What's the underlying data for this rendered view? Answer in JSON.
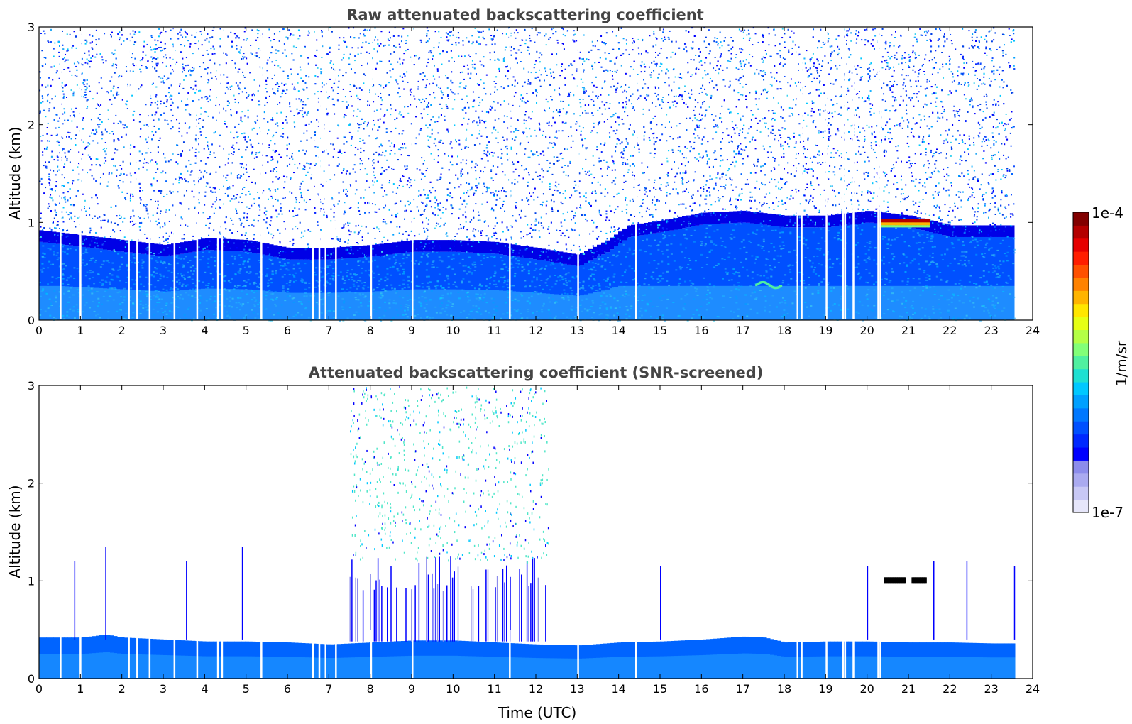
{
  "chart_data": [
    {
      "type": "heatmap",
      "title": "Raw attenuated backscattering coefficient",
      "xlabel": "",
      "ylabel": "Altitude (km)",
      "xlim": [
        0,
        24
      ],
      "ylim": [
        0,
        3
      ],
      "xticks": [
        "0",
        "1",
        "2",
        "3",
        "4",
        "5",
        "6",
        "7",
        "8",
        "9",
        "10",
        "11",
        "12",
        "13",
        "14",
        "15",
        "16",
        "17",
        "18",
        "19",
        "20",
        "21",
        "22",
        "23",
        "24"
      ],
      "yticks": [
        "0",
        "1",
        "2",
        "3"
      ],
      "data_end_time": 23.55,
      "mixing_layer_top_km": [
        [
          0,
          0.8
        ],
        [
          1,
          0.75
        ],
        [
          2,
          0.7
        ],
        [
          3,
          0.65
        ],
        [
          4,
          0.72
        ],
        [
          5,
          0.7
        ],
        [
          6,
          0.62
        ],
        [
          7,
          0.62
        ],
        [
          8,
          0.65
        ],
        [
          9,
          0.7
        ],
        [
          10,
          0.7
        ],
        [
          11,
          0.68
        ],
        [
          12,
          0.62
        ],
        [
          13,
          0.55
        ],
        [
          13.7,
          0.7
        ],
        [
          14.2,
          0.85
        ],
        [
          15,
          0.9
        ],
        [
          16,
          0.98
        ],
        [
          17,
          1.0
        ],
        [
          18,
          0.95
        ],
        [
          19,
          0.95
        ],
        [
          20,
          1.0
        ],
        [
          21,
          0.95
        ],
        [
          22,
          0.85
        ],
        [
          23,
          0.85
        ],
        [
          23.55,
          0.85
        ]
      ],
      "missing_profiles_time": [
        0.5,
        0.98,
        2.15,
        2.35,
        2.65,
        3.25,
        3.8,
        4.3,
        4.4,
        5.35,
        6.6,
        6.75,
        6.9,
        7.15,
        8.0,
        9.0,
        11.35,
        13.0,
        14.4,
        18.3,
        18.4,
        19.0,
        19.4,
        19.45,
        19.65,
        20.25,
        20.3
      ],
      "features": [
        {
          "kind": "cloud",
          "t_start": 20.3,
          "t_end": 21.5,
          "alt_km": 1.0,
          "intensity": "1e-4"
        },
        {
          "kind": "aerosol-layer",
          "t_start": 17.3,
          "t_end": 17.9,
          "alt_km": 0.37,
          "intensity": "enhanced"
        }
      ]
    },
    {
      "type": "heatmap",
      "title": "Attenuated backscattering coefficient (SNR-screened)",
      "xlabel": "Time (UTC)",
      "ylabel": "Altitude (km)",
      "xlim": [
        0,
        24
      ],
      "ylim": [
        0,
        3
      ],
      "xticks": [
        "0",
        "1",
        "2",
        "3",
        "4",
        "5",
        "6",
        "7",
        "8",
        "9",
        "10",
        "11",
        "12",
        "13",
        "14",
        "15",
        "16",
        "17",
        "18",
        "19",
        "20",
        "21",
        "22",
        "23",
        "24"
      ],
      "yticks": [
        "0",
        "1",
        "2",
        "3"
      ],
      "data_end_time": 23.55,
      "boundary_layer_top_km": [
        [
          0,
          0.42
        ],
        [
          1,
          0.42
        ],
        [
          1.6,
          0.45
        ],
        [
          2,
          0.42
        ],
        [
          3,
          0.4
        ],
        [
          4,
          0.38
        ],
        [
          5,
          0.38
        ],
        [
          6,
          0.37
        ],
        [
          7,
          0.35
        ],
        [
          8,
          0.37
        ],
        [
          9,
          0.39
        ],
        [
          10,
          0.39
        ],
        [
          11,
          0.37
        ],
        [
          12,
          0.35
        ],
        [
          13,
          0.34
        ],
        [
          14,
          0.37
        ],
        [
          15,
          0.38
        ],
        [
          16,
          0.4
        ],
        [
          17,
          0.43
        ],
        [
          17.5,
          0.42
        ],
        [
          18,
          0.37
        ],
        [
          19,
          0.38
        ],
        [
          20,
          0.38
        ],
        [
          21,
          0.37
        ],
        [
          22,
          0.37
        ],
        [
          23,
          0.36
        ],
        [
          23.55,
          0.36
        ]
      ],
      "noise_region": {
        "t_start": 7.5,
        "t_end": 12.3,
        "alt_top_km": 3.0
      },
      "spikes": [
        [
          0.85,
          1.2
        ],
        [
          1.6,
          1.35
        ],
        [
          3.55,
          1.2
        ],
        [
          4.9,
          1.35
        ],
        [
          15.0,
          1.15
        ],
        [
          20.0,
          1.15
        ],
        [
          21.6,
          1.2
        ],
        [
          22.4,
          1.2
        ],
        [
          23.55,
          1.15
        ]
      ],
      "features": [
        {
          "kind": "cloud",
          "t_start": 20.4,
          "t_end": 21.4,
          "alt_km": 1.0,
          "color": "black"
        }
      ]
    }
  ],
  "colorbar": {
    "label": "1/m/sr",
    "max_label": "1e-4",
    "min_label": "1e-7",
    "colors": [
      "#e6e6fa",
      "#c8c8f5",
      "#aaaaf0",
      "#8c8ceb",
      "#0000ff",
      "#0028ff",
      "#0050ff",
      "#0078ff",
      "#00a0ff",
      "#00c8ff",
      "#1ee0d2",
      "#50f0a0",
      "#82ff78",
      "#b4ff46",
      "#e6ff14",
      "#ffe600",
      "#ffb400",
      "#ff8200",
      "#ff5000",
      "#ff1e00",
      "#e60000",
      "#b40000",
      "#820000"
    ]
  }
}
